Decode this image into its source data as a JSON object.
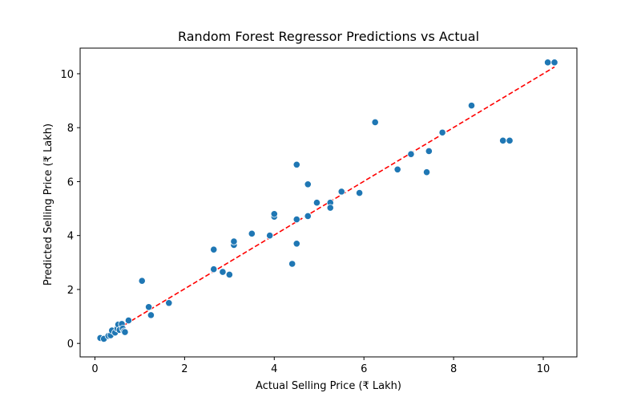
{
  "chart_data": {
    "type": "scatter",
    "title": "Random Forest Regressor Predictions vs Actual",
    "xlabel": "Actual Selling Price (₹ Lakh)",
    "ylabel": "Predicted Selling Price (₹ Lakh)",
    "xlim": [
      -0.33,
      10.75
    ],
    "ylim": [
      -0.5,
      10.95
    ],
    "xticks": [
      0,
      2,
      4,
      6,
      8,
      10
    ],
    "yticks": [
      0,
      2,
      4,
      6,
      8,
      10
    ],
    "grid": false,
    "point_color": "#1f77b4",
    "reference_line": {
      "x": [
        0.12,
        10.25
      ],
      "y": [
        0.15,
        10.25
      ],
      "color": "#ff0000",
      "style": "dashed"
    },
    "points": [
      {
        "x": 0.12,
        "y": 0.2
      },
      {
        "x": 0.2,
        "y": 0.17
      },
      {
        "x": 0.3,
        "y": 0.28
      },
      {
        "x": 0.35,
        "y": 0.3
      },
      {
        "x": 0.38,
        "y": 0.48
      },
      {
        "x": 0.45,
        "y": 0.4
      },
      {
        "x": 0.5,
        "y": 0.55
      },
      {
        "x": 0.52,
        "y": 0.7
      },
      {
        "x": 0.55,
        "y": 0.5
      },
      {
        "x": 0.6,
        "y": 0.72
      },
      {
        "x": 0.62,
        "y": 0.55
      },
      {
        "x": 0.65,
        "y": 0.45
      },
      {
        "x": 0.67,
        "y": 0.42
      },
      {
        "x": 0.75,
        "y": 0.85
      },
      {
        "x": 1.05,
        "y": 2.32
      },
      {
        "x": 1.2,
        "y": 1.35
      },
      {
        "x": 1.25,
        "y": 1.05
      },
      {
        "x": 1.65,
        "y": 1.5
      },
      {
        "x": 2.65,
        "y": 3.48
      },
      {
        "x": 2.65,
        "y": 2.75
      },
      {
        "x": 2.85,
        "y": 2.65
      },
      {
        "x": 3.0,
        "y": 2.55
      },
      {
        "x": 3.1,
        "y": 3.65
      },
      {
        "x": 3.1,
        "y": 3.78
      },
      {
        "x": 3.5,
        "y": 4.07
      },
      {
        "x": 3.9,
        "y": 4.0
      },
      {
        "x": 4.0,
        "y": 4.7
      },
      {
        "x": 4.0,
        "y": 4.8
      },
      {
        "x": 4.4,
        "y": 2.95
      },
      {
        "x": 4.5,
        "y": 6.63
      },
      {
        "x": 4.5,
        "y": 4.6
      },
      {
        "x": 4.5,
        "y": 3.7
      },
      {
        "x": 4.75,
        "y": 5.9
      },
      {
        "x": 4.75,
        "y": 4.72
      },
      {
        "x": 4.95,
        "y": 5.22
      },
      {
        "x": 5.25,
        "y": 5.22
      },
      {
        "x": 5.25,
        "y": 5.03
      },
      {
        "x": 5.5,
        "y": 5.63
      },
      {
        "x": 5.9,
        "y": 5.58
      },
      {
        "x": 6.25,
        "y": 8.2
      },
      {
        "x": 6.75,
        "y": 6.45
      },
      {
        "x": 7.05,
        "y": 7.02
      },
      {
        "x": 7.4,
        "y": 6.35
      },
      {
        "x": 7.45,
        "y": 7.13
      },
      {
        "x": 7.75,
        "y": 7.82
      },
      {
        "x": 8.4,
        "y": 8.82
      },
      {
        "x": 9.1,
        "y": 7.52
      },
      {
        "x": 9.25,
        "y": 7.52
      },
      {
        "x": 10.1,
        "y": 10.42
      },
      {
        "x": 10.25,
        "y": 10.42
      }
    ]
  }
}
